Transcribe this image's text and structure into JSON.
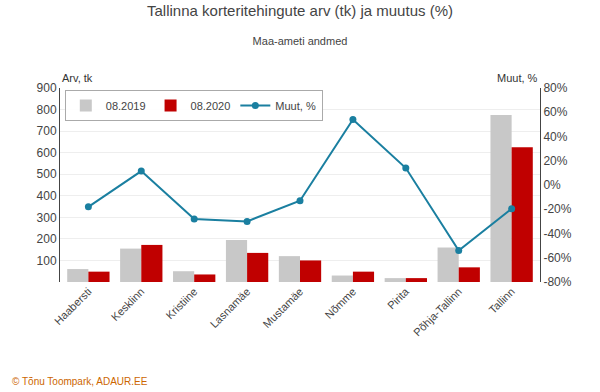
{
  "chart_data": {
    "type": "bar",
    "title": "Tallinna korteritehingute arv (tk) ja muutus (%)",
    "subtitle": "Maa-ameti andmed",
    "ylabel": "Arv, tk",
    "y2label": "Muut, %",
    "annotations": [
      "© Tõnu Toompark, ADAUR.EE"
    ],
    "categories": [
      "Haabersti",
      "Kesklinn",
      "Kristiine",
      "Lasnamäe",
      "Mustamäe",
      "Nõmme",
      "Pirita",
      "Põhja-Tallinn",
      "Tallinn"
    ],
    "series": [
      {
        "name": "08.2019",
        "type": "bar",
        "color": "#c8c8c8",
        "values": [
          60,
          155,
          50,
          195,
          120,
          30,
          18,
          160,
          775
        ]
      },
      {
        "name": "08.2020",
        "type": "bar",
        "color": "#c00000",
        "values": [
          48,
          172,
          35,
          135,
          100,
          48,
          18,
          68,
          625
        ]
      },
      {
        "name": "Muut, %",
        "type": "line",
        "axis": "y2",
        "color": "#1a7fa0",
        "marker": "circle",
        "values": [
          -18,
          11.5,
          -28,
          -30,
          -13,
          54,
          14,
          -54,
          -19.5
        ]
      }
    ],
    "ylim": [
      0,
      900
    ],
    "yticks": [
      100,
      200,
      300,
      400,
      500,
      600,
      700,
      800,
      900
    ],
    "y2lim": [
      -80,
      80
    ],
    "y2ticks": [
      {
        "value": -80,
        "label": "-80%"
      },
      {
        "value": -60,
        "label": "-60%"
      },
      {
        "value": -40,
        "label": "-40%"
      },
      {
        "value": -20,
        "label": "-20%"
      },
      {
        "value": 0,
        "label": "0%"
      },
      {
        "value": 20,
        "label": "20%"
      },
      {
        "value": 40,
        "label": "40%"
      },
      {
        "value": 60,
        "label": "60%"
      },
      {
        "value": 80,
        "label": "80%"
      }
    ],
    "grid": true,
    "legend": "upper left"
  }
}
